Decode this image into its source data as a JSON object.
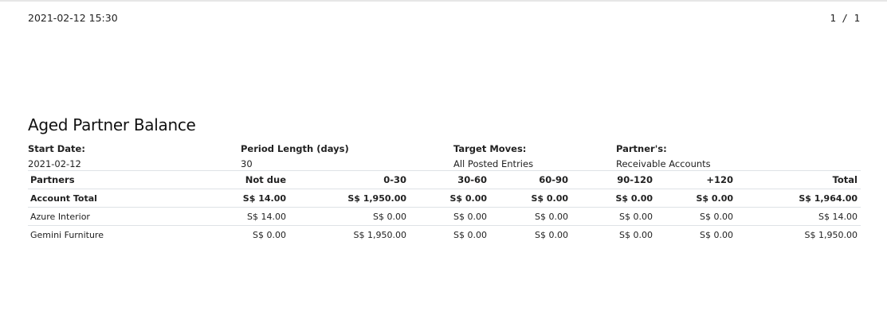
{
  "header": {
    "timestamp": "2021-02-12 15:30",
    "page_indicator": "1 / 1"
  },
  "report": {
    "title": "Aged Partner Balance",
    "meta": [
      {
        "label": "Start Date:",
        "value": "2021-02-12"
      },
      {
        "label": "Period Length (days)",
        "value": "30"
      },
      {
        "label": "Target Moves:",
        "value": "All Posted Entries"
      },
      {
        "label": "Partner's:",
        "value": "Receivable Accounts"
      }
    ],
    "columns": [
      "Partners",
      "Not due",
      "0-30",
      "30-60",
      "60-90",
      "90-120",
      "+120",
      "Total"
    ],
    "total_row": [
      "Account Total",
      "S$ 14.00",
      "S$ 1,950.00",
      "S$ 0.00",
      "S$ 0.00",
      "S$ 0.00",
      "S$ 0.00",
      "S$ 1,964.00"
    ],
    "rows": [
      [
        "Azure Interior",
        "S$ 14.00",
        "S$ 0.00",
        "S$ 0.00",
        "S$ 0.00",
        "S$ 0.00",
        "S$ 0.00",
        "S$ 14.00"
      ],
      [
        "Gemini Furniture",
        "S$ 0.00",
        "S$ 1,950.00",
        "S$ 0.00",
        "S$ 0.00",
        "S$ 0.00",
        "S$ 0.00",
        "S$ 1,950.00"
      ]
    ]
  }
}
